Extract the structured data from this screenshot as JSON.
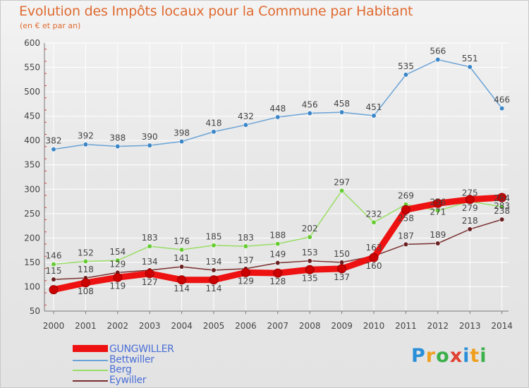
{
  "header": {
    "title": "Evolution des Impôts locaux pour la Commune par Habitant",
    "subtitle": "(en € et par an)"
  },
  "logo": {
    "text": "Proxiti",
    "colors": [
      "#2a8fd8",
      "#f0a020",
      "#3cb04a",
      "#e04030",
      "#2a8fd8",
      "#f0a020",
      "#3cb04a"
    ]
  },
  "chart_data": {
    "type": "line",
    "title": "Evolution des Impôts locaux pour la Commune par Habitant",
    "subtitle": "(en € et par an)",
    "xlabel": "",
    "ylabel": "",
    "ylim": [
      50,
      600
    ],
    "yticks": [
      50,
      100,
      150,
      200,
      250,
      300,
      350,
      400,
      450,
      500,
      550,
      600
    ],
    "grid": true,
    "categories": [
      "2000",
      "2001",
      "2002",
      "2003",
      "2004",
      "2005",
      "2006",
      "2007",
      "2008",
      "2009",
      "2010",
      "2011",
      "2012",
      "2013",
      "2014"
    ],
    "series": [
      {
        "name": "GUNGWILLER",
        "color": "#ee1111",
        "markerColor": "#cc0000",
        "values": [
          94,
          108,
          119,
          127,
          114,
          114,
          129,
          128,
          135,
          137,
          160,
          258,
          271,
          279,
          283
        ],
        "labels": [
          "",
          "108",
          "119",
          "127",
          "114",
          "114",
          "129",
          "128",
          "135",
          "137",
          "160",
          "258",
          "271",
          "279",
          "283"
        ]
      },
      {
        "name": "Bettwiller",
        "color": "#6aa3d6",
        "markerColor": "#3b86c8",
        "values": [
          382,
          392,
          388,
          390,
          398,
          418,
          432,
          448,
          456,
          458,
          451,
          535,
          566,
          551,
          466
        ],
        "labels": [
          "382",
          "392",
          "388",
          "390",
          "398",
          "418",
          "432",
          "448",
          "456",
          "458",
          "451",
          "535",
          "566",
          "551",
          "466"
        ]
      },
      {
        "name": "Berg",
        "color": "#99dd66",
        "markerColor": "#66cc33",
        "values": [
          146,
          152,
          154,
          183,
          176,
          185,
          183,
          188,
          202,
          297,
          232,
          269,
          256,
          275,
          264
        ],
        "labels": [
          "146",
          "152",
          "154",
          "183",
          "176",
          "185",
          "183",
          "188",
          "202",
          "297",
          "232",
          "269",
          "256",
          "275",
          "264"
        ]
      },
      {
        "name": "Eywiller",
        "color": "#7a3030",
        "markerColor": "#6a2020",
        "values": [
          115,
          118,
          129,
          134,
          141,
          134,
          137,
          149,
          153,
          150,
          163,
          187,
          189,
          218,
          238
        ],
        "labels": [
          "115",
          "118",
          "129",
          "134",
          "141",
          "134",
          "137",
          "149",
          "153",
          "150",
          "163",
          "187",
          "189",
          "218",
          "238"
        ]
      }
    ],
    "legend": {
      "position": "bottom-left"
    }
  }
}
